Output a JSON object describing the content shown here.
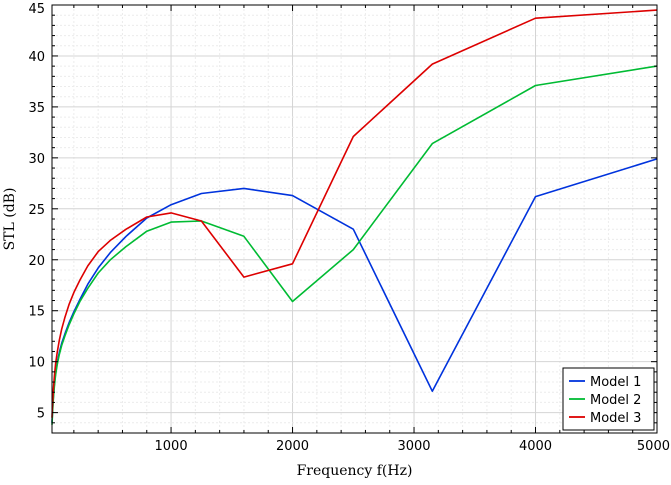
{
  "chart_data": {
    "type": "line",
    "title": "",
    "xlabel": "Frequency f(Hz)",
    "ylabel": "STL (dB)",
    "xlim": [
      20,
      5000
    ],
    "ylim": [
      3,
      45
    ],
    "xticks": [
      1000,
      2000,
      3000,
      4000,
      5000
    ],
    "yticks": [
      5,
      10,
      15,
      20,
      25,
      30,
      35,
      40,
      45
    ],
    "grid": true,
    "legend_position": "bottom-right",
    "series": [
      {
        "name": "Model 1",
        "color": "#0033dd",
        "x": [
          20,
          25,
          31.5,
          40,
          50,
          63,
          80,
          100,
          125,
          160,
          200,
          250,
          315,
          400,
          500,
          630,
          800,
          1000,
          1250,
          1600,
          2000,
          2500,
          3150,
          4000,
          5000
        ],
        "y": [
          4.0,
          5.3,
          6.6,
          7.8,
          8.9,
          9.9,
          10.9,
          11.8,
          12.7,
          13.8,
          14.9,
          16.1,
          17.6,
          19.2,
          20.7,
          22.3,
          24.1,
          25.4,
          26.5,
          27.0,
          26.3,
          23.0,
          7.1,
          26.2,
          29.9
        ]
      },
      {
        "name": "Model 2",
        "color": "#00bb33",
        "x": [
          20,
          25,
          31.5,
          40,
          50,
          63,
          80,
          100,
          125,
          160,
          200,
          250,
          315,
          400,
          500,
          630,
          800,
          1000,
          1250,
          1600,
          2000,
          2500,
          3150,
          4000,
          5000
        ],
        "y": [
          3.8,
          5.1,
          6.4,
          7.6,
          8.7,
          9.7,
          10.7,
          11.6,
          12.5,
          13.6,
          14.7,
          15.9,
          17.2,
          18.7,
          20.0,
          21.3,
          22.8,
          23.7,
          23.8,
          22.3,
          15.9,
          21.0,
          31.4,
          37.1,
          39.0
        ]
      },
      {
        "name": "Model 3",
        "color": "#dd0000",
        "x": [
          20,
          25,
          31.5,
          40,
          50,
          63,
          80,
          100,
          125,
          160,
          200,
          250,
          315,
          400,
          500,
          630,
          800,
          1000,
          1250,
          1600,
          2000,
          2500,
          3150,
          4000,
          5000
        ],
        "y": [
          4.5,
          5.9,
          7.3,
          8.6,
          9.8,
          10.9,
          12.1,
          13.2,
          14.3,
          15.6,
          16.8,
          18.0,
          19.4,
          20.8,
          21.9,
          23.0,
          24.2,
          24.6,
          23.8,
          18.3,
          19.6,
          32.1,
          39.2,
          43.7,
          44.5
        ]
      }
    ]
  }
}
